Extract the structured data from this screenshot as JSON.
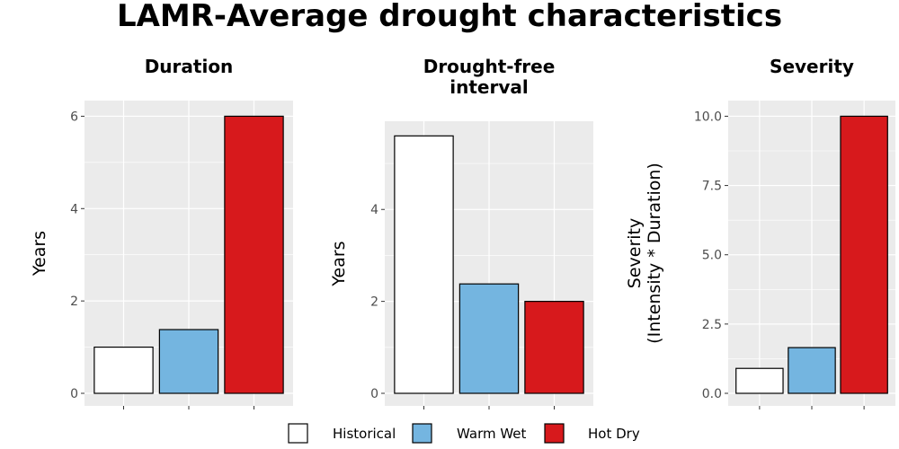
{
  "title": "LAMR-Average drought characteristics",
  "legend": {
    "items": [
      {
        "label": "Historical",
        "color": "#FFFFFF"
      },
      {
        "label": "Warm Wet",
        "color": "#74B5E0"
      },
      {
        "label": "Hot Dry",
        "color": "#D7191C"
      }
    ]
  },
  "chart_data": [
    {
      "type": "bar",
      "title": "Duration",
      "xlabel": "",
      "ylabel": "Years",
      "categories": [
        "Historical",
        "Warm Wet",
        "Hot Dry"
      ],
      "values": [
        1.0,
        1.38,
        6.0
      ],
      "ylim": [
        0,
        6.3
      ],
      "yticks": [
        0,
        2,
        4,
        6
      ],
      "ytick_labels": [
        "0",
        "2",
        "4",
        "6"
      ],
      "grid": true
    },
    {
      "type": "bar",
      "title": "Drought-free interval",
      "xlabel": "",
      "ylabel": "Years",
      "categories": [
        "Historical",
        "Warm Wet",
        "Hot Dry"
      ],
      "values": [
        5.6,
        2.38,
        2.0
      ],
      "ylim": [
        0,
        5.88
      ],
      "yticks": [
        0,
        2,
        4
      ],
      "ytick_labels": [
        "0",
        "2",
        "4"
      ],
      "grid": true
    },
    {
      "type": "bar",
      "title": "Severity",
      "xlabel": "",
      "ylabel": "Severity (Intensity * Duration)",
      "categories": [
        "Historical",
        "Warm Wet",
        "Hot Dry"
      ],
      "values": [
        0.9,
        1.65,
        10.0
      ],
      "ylim": [
        0,
        10.5
      ],
      "yticks": [
        0,
        2.5,
        5,
        7.5,
        10
      ],
      "ytick_labels": [
        "0.0",
        "2.5",
        "5.0",
        "7.5",
        "10.0"
      ],
      "grid": true
    }
  ]
}
